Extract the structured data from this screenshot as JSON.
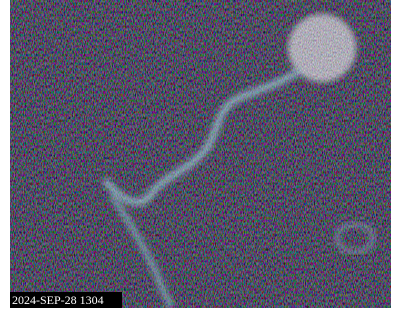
{
  "timestamp": "2024-SEP-28 1304"
}
